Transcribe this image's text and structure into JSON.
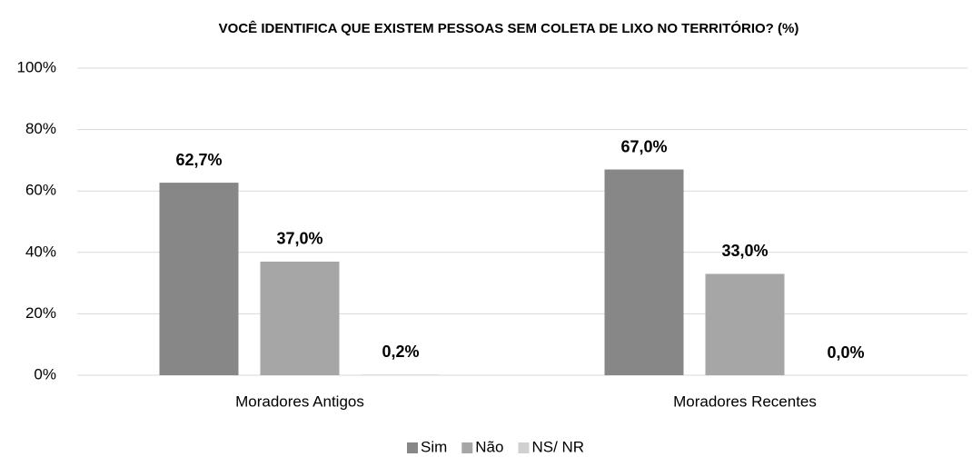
{
  "chart_data": {
    "type": "bar",
    "title": "VOCÊ IDENTIFICA QUE EXISTEM PESSOAS SEM COLETA DE LIXO NO TERRITÓRIO? (%)",
    "categories": [
      "Moradores Antigos",
      "Moradores Recentes"
    ],
    "series": [
      {
        "name": "Sim",
        "color": "#878787",
        "values": [
          62.7,
          67.0
        ],
        "value_labels": [
          "62,7%",
          "67,0%"
        ]
      },
      {
        "name": "Não",
        "color": "#a6a6a6",
        "values": [
          37.0,
          33.0
        ],
        "value_labels": [
          "37,0%",
          "33,0%"
        ]
      },
      {
        "name": "NS/ NR",
        "color": "#d0d0d0",
        "values": [
          0.2,
          0.0
        ],
        "value_labels": [
          "0,2%",
          "0,0%"
        ]
      }
    ],
    "ylim": [
      0,
      100
    ],
    "yticks": [
      {
        "value": 0,
        "label": "0%"
      },
      {
        "value": 20,
        "label": "20%"
      },
      {
        "value": 40,
        "label": "40%"
      },
      {
        "value": 60,
        "label": "60%"
      },
      {
        "value": 80,
        "label": "80%"
      },
      {
        "value": 100,
        "label": "100%"
      }
    ],
    "grid": true,
    "legend": "bottom"
  }
}
